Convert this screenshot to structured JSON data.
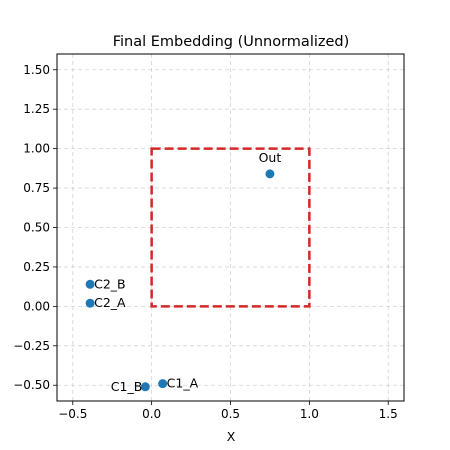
{
  "chart_data": {
    "type": "scatter",
    "title": "Final Embedding (Unnormalized)",
    "xlabel": "X",
    "ylabel": "",
    "xlim": [
      -0.6,
      1.6
    ],
    "ylim": [
      -0.6,
      1.6
    ],
    "xticks": [
      -0.5,
      0.0,
      0.5,
      1.0,
      1.5
    ],
    "xtick_labels": [
      "−0.5",
      "0.0",
      "0.5",
      "1.0",
      "1.5"
    ],
    "yticks": [
      -0.5,
      -0.25,
      0.0,
      0.25,
      0.5,
      0.75,
      1.0,
      1.25,
      1.5
    ],
    "ytick_labels": [
      "−0.50",
      "−0.25",
      "0.00",
      "0.25",
      "0.50",
      "0.75",
      "1.00",
      "1.25",
      "1.50"
    ],
    "grid": true,
    "point_color": "#1f77b4",
    "points": [
      {
        "label": "C1_A",
        "x": 0.07,
        "y": -0.49,
        "label_side": "right"
      },
      {
        "label": "C1_B",
        "x": -0.04,
        "y": -0.51,
        "label_side": "left"
      },
      {
        "label": "C2_A",
        "x": -0.39,
        "y": 0.02,
        "label_side": "right"
      },
      {
        "label": "C2_B",
        "x": -0.39,
        "y": 0.14,
        "label_side": "right"
      },
      {
        "label": "Out",
        "x": 0.75,
        "y": 0.84,
        "label_side": "above"
      }
    ],
    "box": {
      "x0": 0.0,
      "y0": 0.0,
      "x1": 1.0,
      "y1": 1.0,
      "color": "#d62728",
      "style": "dashed"
    }
  }
}
